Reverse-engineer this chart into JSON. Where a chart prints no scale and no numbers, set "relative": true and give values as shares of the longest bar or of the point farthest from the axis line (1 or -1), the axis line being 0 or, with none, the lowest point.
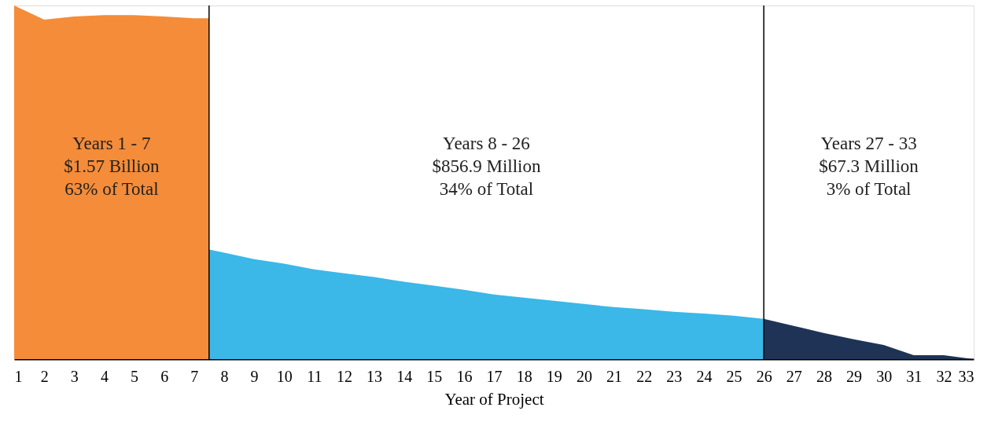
{
  "chart_data": {
    "type": "area",
    "relative": true,
    "xlabel": "Year of Project",
    "xlim": [
      1,
      33
    ],
    "xticks": [
      1,
      2,
      3,
      4,
      5,
      6,
      7,
      8,
      9,
      10,
      11,
      12,
      13,
      14,
      15,
      16,
      17,
      18,
      19,
      20,
      21,
      22,
      23,
      24,
      25,
      26,
      27,
      28,
      29,
      30,
      31,
      32,
      33
    ],
    "grid": false,
    "series": [
      {
        "color": "#f48c3a",
        "x": [
          1,
          2,
          3,
          4,
          5,
          6,
          7,
          7.5
        ],
        "values": [
          1.0,
          0.96,
          0.969,
          0.973,
          0.973,
          0.969,
          0.964,
          0.964
        ]
      },
      {
        "color": "#3bb7e8",
        "x": [
          7.5,
          8,
          9,
          10,
          11,
          12,
          13,
          14,
          15,
          16,
          17,
          18,
          19,
          20,
          21,
          22,
          23,
          24,
          25,
          26
        ],
        "values": [
          0.31,
          0.301,
          0.283,
          0.27,
          0.254,
          0.243,
          0.232,
          0.219,
          0.208,
          0.196,
          0.183,
          0.174,
          0.165,
          0.156,
          0.147,
          0.141,
          0.134,
          0.129,
          0.123,
          0.114
        ]
      },
      {
        "color": "#1f3356",
        "x": [
          26,
          27,
          28,
          29,
          30,
          31,
          32,
          33
        ],
        "values": [
          0.114,
          0.094,
          0.074,
          0.056,
          0.04,
          0.011,
          0.011,
          0
        ]
      }
    ],
    "ref_lines": [
      {
        "axis": "x",
        "value": 7.5,
        "color": "#000000"
      },
      {
        "axis": "x",
        "value": 26,
        "color": "#000000"
      }
    ],
    "annotations": [
      "Years 1 - 7\n$1.57 Billion\n63% of Total",
      "Years 8 - 26\n$856.9 Million\n34% of Total",
      "Years 27 - 33\n$67.3 Million\n3% of Total"
    ]
  }
}
